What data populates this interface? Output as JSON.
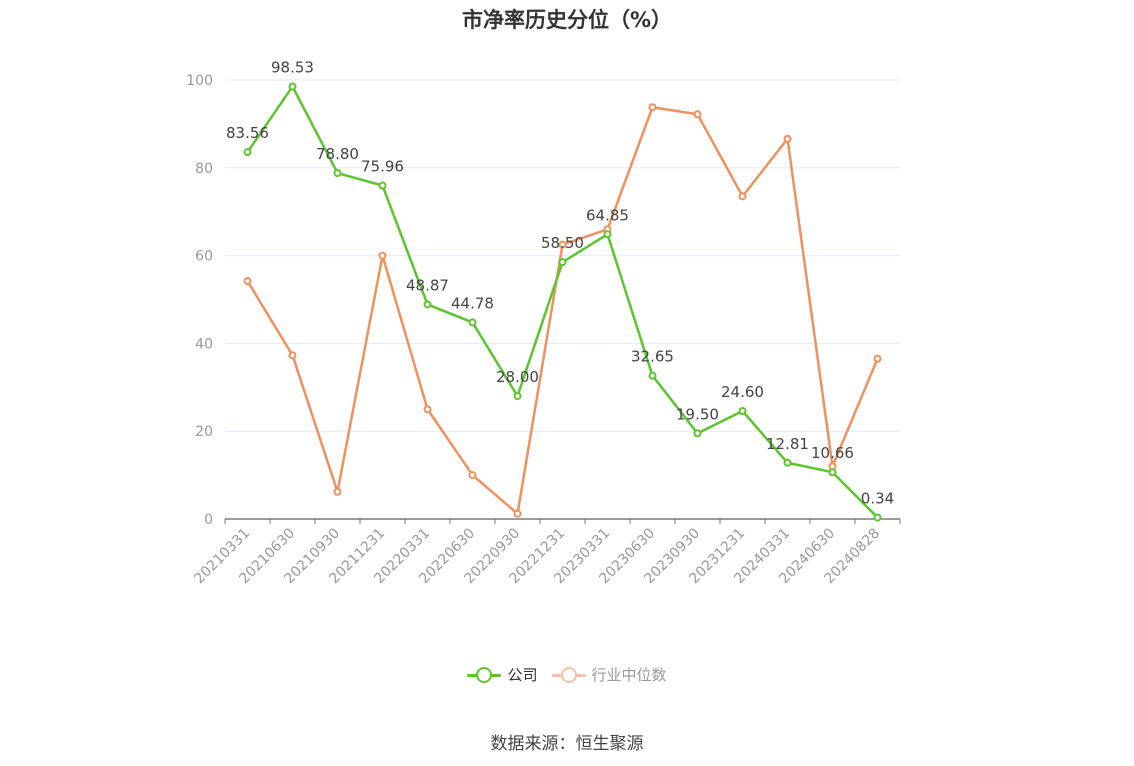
{
  "title": "市净率历史分位（%）",
  "source": "数据来源：恒生聚源",
  "colors": {
    "company": "#5cc52e",
    "industry": "#f0905f",
    "grid": "#e6e9ef",
    "axis": "#7a7a7a",
    "tick_text": "#999999",
    "label_text": "#444444"
  },
  "chart_data": {
    "type": "line",
    "categories": [
      "20210331",
      "20210630",
      "20210930",
      "20211231",
      "20220331",
      "20220630",
      "20220930",
      "20221231",
      "20230331",
      "20230630",
      "20230930",
      "20231231",
      "20240331",
      "20240630",
      "20240828"
    ],
    "ylim": [
      0,
      100
    ],
    "yticks": [
      0,
      20,
      40,
      60,
      80,
      100
    ],
    "grid": true,
    "legend_position": "bottom",
    "series": [
      {
        "name": "公司",
        "color": "#5cc52e",
        "show_labels": true,
        "values": [
          83.56,
          98.53,
          78.8,
          75.96,
          48.87,
          44.78,
          28.0,
          58.5,
          64.85,
          32.65,
          19.5,
          24.6,
          12.81,
          10.66,
          0.34
        ]
      },
      {
        "name": "行业中位数",
        "color": "#f0905f",
        "show_labels": false,
        "values": [
          54.2,
          37.3,
          6.2,
          60.0,
          25.0,
          10.0,
          1.2,
          62.5,
          66.0,
          93.8,
          92.2,
          73.5,
          86.6,
          12.0,
          36.5
        ]
      }
    ]
  },
  "legend": [
    {
      "label": "公司",
      "color": "#5cc52e"
    },
    {
      "label": "行业中位数",
      "color": "#f0905f"
    }
  ]
}
